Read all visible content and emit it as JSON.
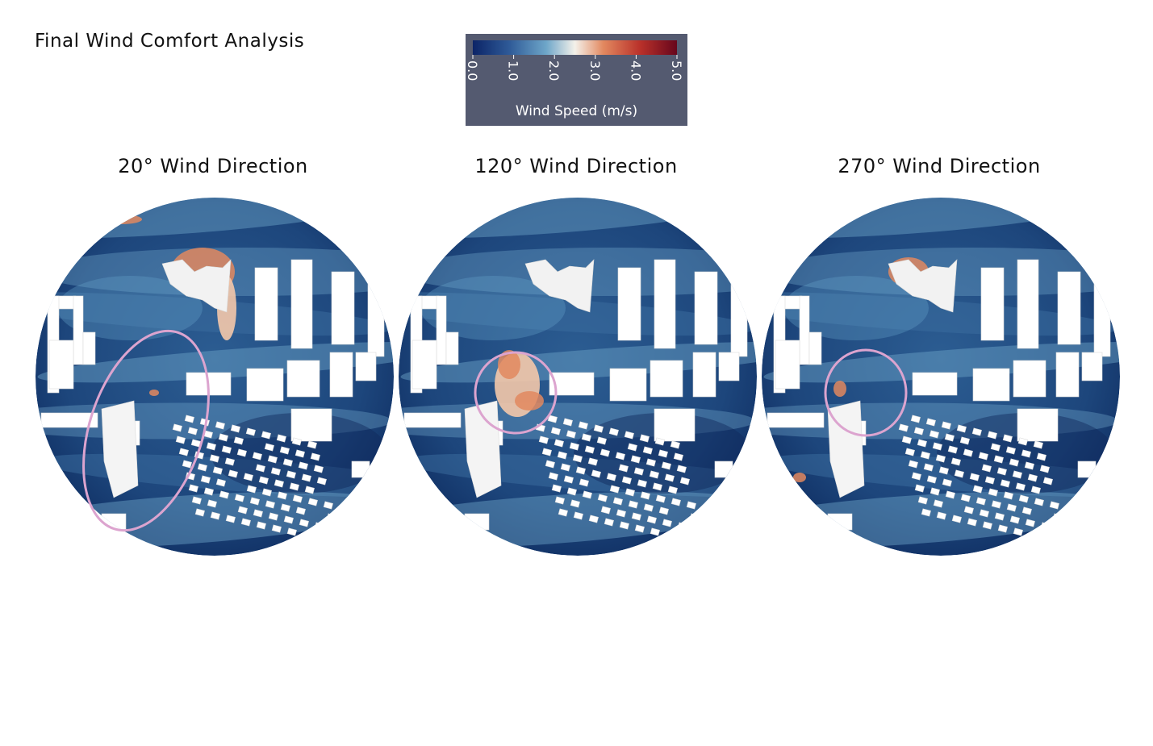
{
  "title": "Final Wind Comfort Analysis",
  "legend": {
    "title": "Wind Speed (m/s)",
    "ticks": [
      "0.0",
      "1.0",
      "2.0",
      "3.0",
      "4.0",
      "5.0"
    ],
    "range": [
      0,
      5
    ],
    "colormap": [
      "#0c2467",
      "#2f5b98",
      "#6ea6c9",
      "#f4f1ea",
      "#e2885f",
      "#b9312a",
      "#67061c"
    ]
  },
  "panels": [
    {
      "label": "20° Wind Direction",
      "highlight_shape": "tall-ellipse"
    },
    {
      "label": "120° Wind Direction",
      "highlight_shape": "circle"
    },
    {
      "label": "270° Wind Direction",
      "highlight_shape": "circle"
    }
  ],
  "colors": {
    "highlight": "#dca4cf",
    "building": "#ffffff",
    "base_flow": "#1e4a80"
  }
}
